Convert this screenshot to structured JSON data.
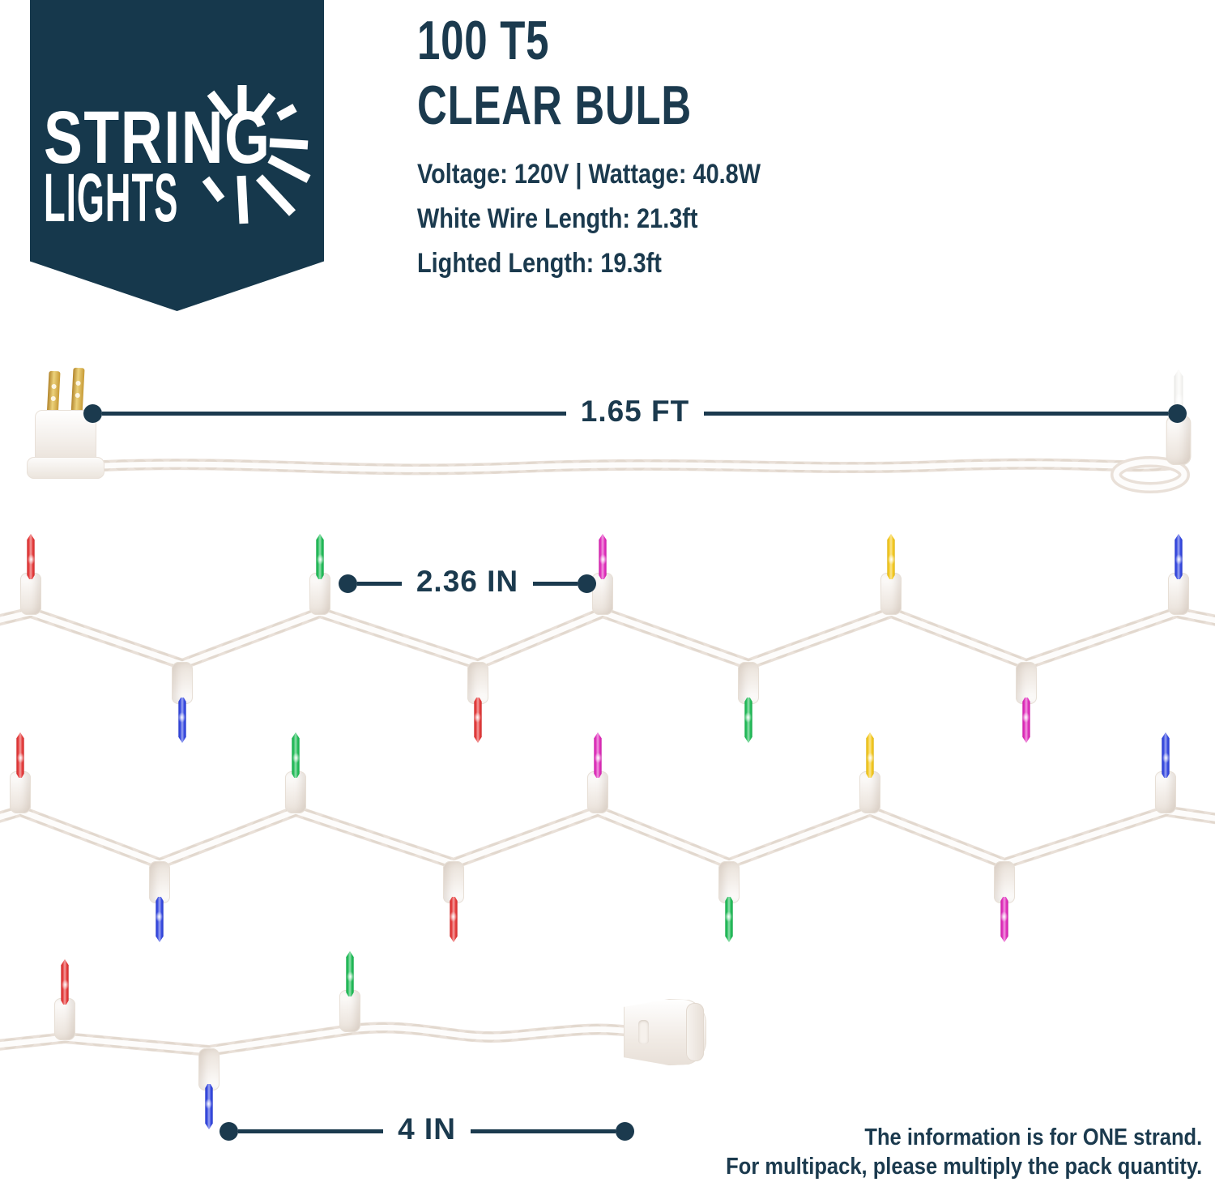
{
  "brand": {
    "line1": "STRING",
    "line2": "LIGHTS",
    "icon": "starburst"
  },
  "title": {
    "line1": "100 T5",
    "line2": "CLEAR BULB"
  },
  "specs": [
    "Voltage: 120V | Wattage: 40.8W",
    "White Wire Length: 21.3ft",
    "Lighted Length: 19.3ft"
  ],
  "measurements": {
    "lead_length": "1.65 FT",
    "bulb_spacing": "2.36 IN",
    "tail_length": "4 IN"
  },
  "footer": {
    "line1": "The information is for ONE strand.",
    "line2": "For multipack, please multiply the pack quantity."
  },
  "colors": {
    "navy": "#1b3a4e",
    "banner": "#16384c",
    "wire": "#e9e0d8",
    "red": "#e32a2a",
    "green": "#10b74b",
    "magenta": "#de1cb6",
    "yellow": "#f4c50f",
    "blue": "#2439de",
    "clear": "#f3f2ef",
    "prong_gold": "#c79a35"
  },
  "strand_rows": [
    {
      "name": "strand-row-2",
      "up": [
        "red",
        "green",
        "magenta",
        "yellow",
        "blue"
      ],
      "down": [
        "blue",
        "red",
        "green",
        "magenta"
      ]
    },
    {
      "name": "strand-row-3",
      "up": [
        "red",
        "green",
        "magenta",
        "yellow",
        "blue"
      ],
      "down": [
        "blue",
        "red",
        "green",
        "magenta"
      ]
    },
    {
      "name": "strand-row-4",
      "up": [
        "red",
        "green"
      ],
      "down": [
        "blue"
      ]
    }
  ],
  "hardware": {
    "plug": "two-prong power plug",
    "first_bulb": "clear",
    "end_connector": "female end socket"
  }
}
